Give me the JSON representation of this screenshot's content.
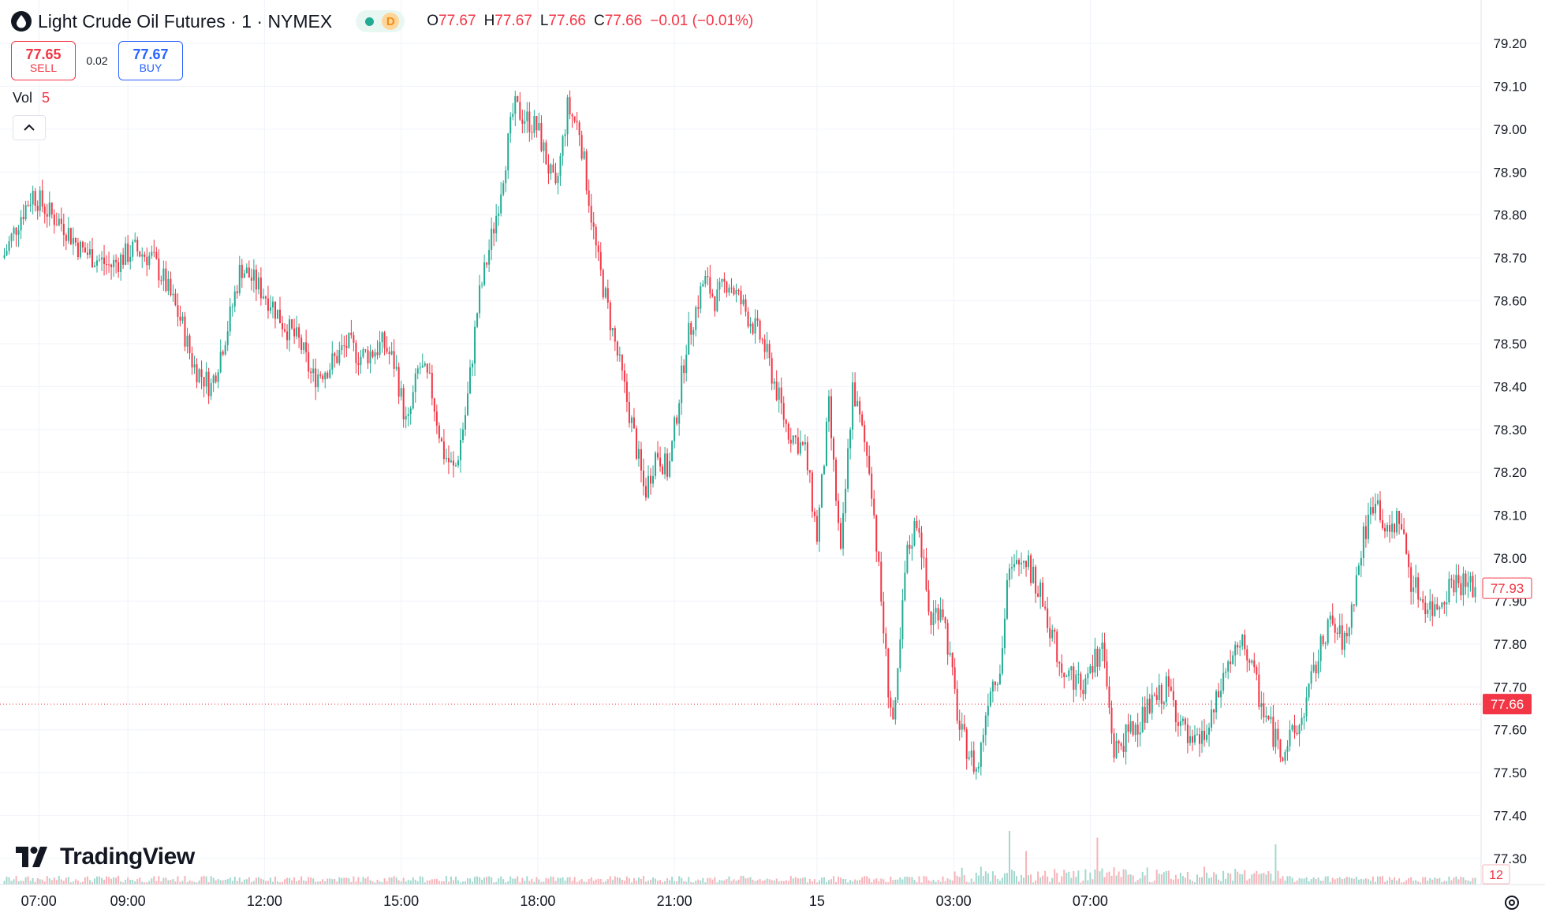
{
  "symbol": {
    "title": "Light Crude Oil Futures · 1 · NYMEX",
    "status_letter": "D"
  },
  "ohlc": {
    "o_label": "O",
    "o": "77.67",
    "h_label": "H",
    "h": "77.67",
    "l_label": "L",
    "l": "77.66",
    "c_label": "C",
    "c": "77.66",
    "change": "−0.01 (−0.01%)"
  },
  "trade": {
    "sell_price": "77.65",
    "sell_label": "SELL",
    "spread": "0.02",
    "buy_price": "77.67",
    "buy_label": "BUY"
  },
  "volume": {
    "label": "Vol",
    "value": "5"
  },
  "branding": {
    "logo_text": "TradingView"
  },
  "colors": {
    "up": "#22ab94",
    "down": "#f23645",
    "up_volume": "#a3d8ce",
    "down_volume": "#f7b3b9",
    "grid": "#f0f3fa",
    "text": "#131722"
  },
  "chart_data": {
    "type": "candlestick",
    "interval": "1 minute",
    "y_axis": {
      "ylim": [
        77.25,
        79.25
      ],
      "ticks": [
        "77.30",
        "77.40",
        "77.50",
        "77.60",
        "77.70",
        "77.80",
        "77.90",
        "78.00",
        "78.10",
        "78.20",
        "78.30",
        "78.40",
        "78.50",
        "78.60",
        "78.70",
        "78.80",
        "78.90",
        "79.00",
        "79.10",
        "79.20"
      ]
    },
    "x_axis": {
      "tick_labels": [
        "07:00",
        "09:00",
        "12:00",
        "15:00",
        "18:00",
        "21:00",
        "15",
        "03:00",
        "07:00"
      ]
    },
    "price_path": {
      "t": [
        0,
        3,
        5,
        8,
        10,
        13,
        18,
        22,
        25,
        27,
        30,
        32,
        35,
        38,
        40,
        45,
        47,
        50,
        52,
        55,
        58,
        60,
        62,
        64,
        66,
        68,
        70,
        72,
        74,
        76,
        78,
        80,
        83,
        86,
        90,
        93,
        95,
        97,
        100,
        103,
        106,
        108,
        110,
        112,
        115,
        118,
        120,
        122,
        124,
        126,
        128,
        130,
        132,
        135,
        137,
        139,
        141,
        143,
        146,
        149,
        150,
        152,
        154,
        156,
        158,
        161,
        164,
        166,
        168,
        169,
        172,
        175,
        178,
        182,
        185,
        187,
        190,
        193,
        196,
        200,
        203,
        206,
        209,
        212,
        215,
        218,
        220,
        223,
        226,
        229,
        231,
        233,
        235,
        237,
        239,
        241,
        244,
        248
      ],
      "price": [
        78.7,
        78.8,
        78.85,
        78.8,
        78.78,
        78.72,
        78.68,
        78.72,
        78.7,
        78.65,
        78.55,
        78.45,
        78.4,
        78.55,
        78.68,
        78.6,
        78.55,
        78.5,
        78.42,
        78.45,
        78.5,
        78.47,
        78.48,
        78.5,
        78.45,
        78.3,
        78.45,
        78.4,
        78.25,
        78.2,
        78.35,
        78.6,
        78.8,
        79.05,
        79.0,
        78.85,
        79.05,
        79.0,
        78.7,
        78.5,
        78.3,
        78.15,
        78.25,
        78.2,
        78.5,
        78.65,
        78.6,
        78.65,
        78.6,
        78.55,
        78.5,
        78.4,
        78.3,
        78.25,
        78.05,
        78.35,
        78.0,
        78.4,
        78.2,
        77.7,
        77.6,
        78.0,
        78.1,
        77.85,
        77.9,
        77.6,
        77.5,
        77.7,
        77.75,
        77.95,
        78.0,
        77.9,
        77.75,
        77.7,
        77.8,
        77.55,
        77.6,
        77.65,
        77.7,
        77.55,
        77.6,
        77.75,
        77.8,
        77.65,
        77.55,
        77.6,
        77.7,
        77.85,
        77.8,
        78.05,
        78.15,
        78.05,
        78.1,
        77.95,
        77.9,
        77.88,
        77.95,
        77.93
      ]
    },
    "current_price": 77.66,
    "last_close": 77.93,
    "last_volume": 12,
    "volume_spikes": [
      {
        "t": 169,
        "volume": 8
      },
      {
        "t": 172,
        "volume": 5
      },
      {
        "t": 184,
        "volume": 7
      },
      {
        "t": 214,
        "volume": 6
      }
    ]
  }
}
